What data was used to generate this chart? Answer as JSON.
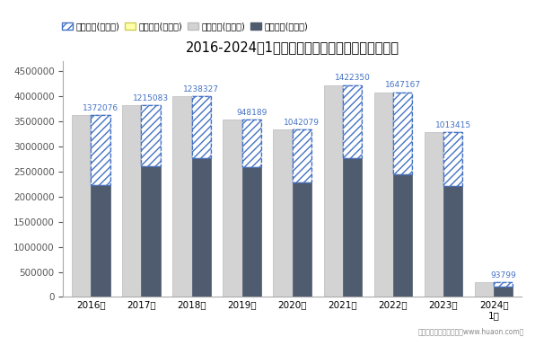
{
  "title": "2016-2024年1月福建省外商投资企业进出口差额图",
  "years": [
    "2016年",
    "2017年",
    "2018年",
    "2019年",
    "2020年",
    "2021年",
    "2022年",
    "2023年",
    "2024年\n1月"
  ],
  "export_total": [
    3620000,
    3820000,
    4000000,
    3530000,
    3330000,
    4220000,
    4080000,
    3280000,
    290000
  ],
  "import_total": [
    2230000,
    2600000,
    2760000,
    2590000,
    2290000,
    2760000,
    2450000,
    2210000,
    200000
  ],
  "trade_surplus": [
    1372076,
    1215083,
    1238327,
    948189,
    1042079,
    1422350,
    1647167,
    1013415,
    93799
  ],
  "surplus_label_color": "#4472C4",
  "export_color": "#D3D3D3",
  "import_color": "#4F5B6E",
  "hatch_color": "#4472C4",
  "bar_width": 0.38,
  "ylim": [
    0,
    4700000
  ],
  "yticks": [
    0,
    500000,
    1000000,
    1500000,
    2000000,
    2500000,
    3000000,
    3500000,
    4000000,
    4500000
  ],
  "legend_labels": [
    "贸易顺差(万美元)",
    "贸易逆差(万美元)",
    "出口总额(万美元)",
    "进口总额(万美元)"
  ],
  "footer": "制图：华经产业研究院（www.huaon.com）",
  "bg_color": "#FFFFFF"
}
